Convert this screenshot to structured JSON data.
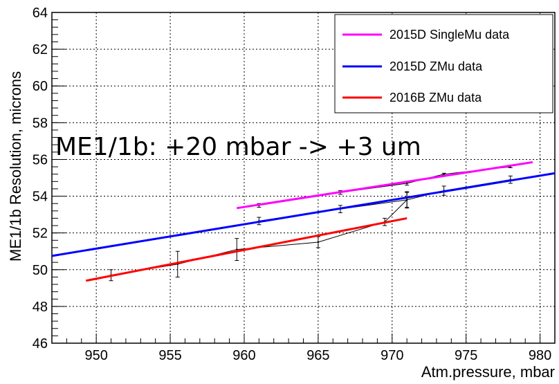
{
  "chart_data": {
    "type": "scatter",
    "title": "",
    "xlabel": "Atm.pressure, mbar",
    "ylabel": "ME1/1b  Resolution, microns",
    "xlim": [
      947,
      981
    ],
    "ylim": [
      46,
      64
    ],
    "x_ticks": [
      950,
      955,
      960,
      965,
      970,
      975,
      980
    ],
    "y_ticks": [
      46,
      48,
      50,
      52,
      54,
      56,
      58,
      60,
      62,
      64
    ],
    "x_tick_labels": [
      "950",
      "955",
      "960",
      "965",
      "970",
      "975",
      "980"
    ],
    "y_tick_labels": [
      "46",
      "48",
      "50",
      "52",
      "54",
      "56",
      "58",
      "60",
      "62",
      "64"
    ],
    "grid": true,
    "legend_position": "top-right",
    "annotation": "ME1/1b: +20 mbar -> +3 um",
    "series": [
      {
        "name": "2015D SingleMu data",
        "color": "#ff00ff",
        "points": [
          {
            "x": 961.0,
            "y": 53.5,
            "err": 0.1
          },
          {
            "x": 966.5,
            "y": 54.2,
            "err": 0.1
          },
          {
            "x": 971.0,
            "y": 54.7,
            "err": 0.1
          },
          {
            "x": 973.5,
            "y": 55.2,
            "err": 0.05
          },
          {
            "x": 978.0,
            "y": 55.6,
            "err": 0.05
          }
        ],
        "fit": {
          "x": [
            959.5,
            979.5
          ],
          "y": [
            53.35,
            55.85
          ]
        }
      },
      {
        "name": "2015D ZMu data",
        "color": "#0000ff",
        "points": [
          {
            "x": 961.0,
            "y": 52.65,
            "err": 0.2
          },
          {
            "x": 966.5,
            "y": 53.3,
            "err": 0.2
          },
          {
            "x": 971.0,
            "y": 53.8,
            "err": 0.45
          },
          {
            "x": 973.5,
            "y": 54.3,
            "err": 0.25
          },
          {
            "x": 978.0,
            "y": 54.9,
            "err": 0.2
          }
        ],
        "fit": {
          "x": [
            947.0,
            981.0
          ],
          "y": [
            50.75,
            55.25
          ]
        }
      },
      {
        "name": "2016B ZMu data",
        "color": "#ff0000",
        "points": [
          {
            "x": 951.0,
            "y": 49.7,
            "err": 0.3
          },
          {
            "x": 955.5,
            "y": 50.3,
            "err": 0.7
          },
          {
            "x": 959.5,
            "y": 51.1,
            "err": 0.6
          },
          {
            "x": 965.0,
            "y": 51.5,
            "err": 0.3
          },
          {
            "x": 969.5,
            "y": 52.6,
            "err": 0.2
          },
          {
            "x": 971.0,
            "y": 53.8,
            "err": 0.4
          }
        ],
        "fit": {
          "x": [
            949.3,
            971.0
          ],
          "y": [
            49.4,
            52.8
          ]
        }
      }
    ]
  }
}
